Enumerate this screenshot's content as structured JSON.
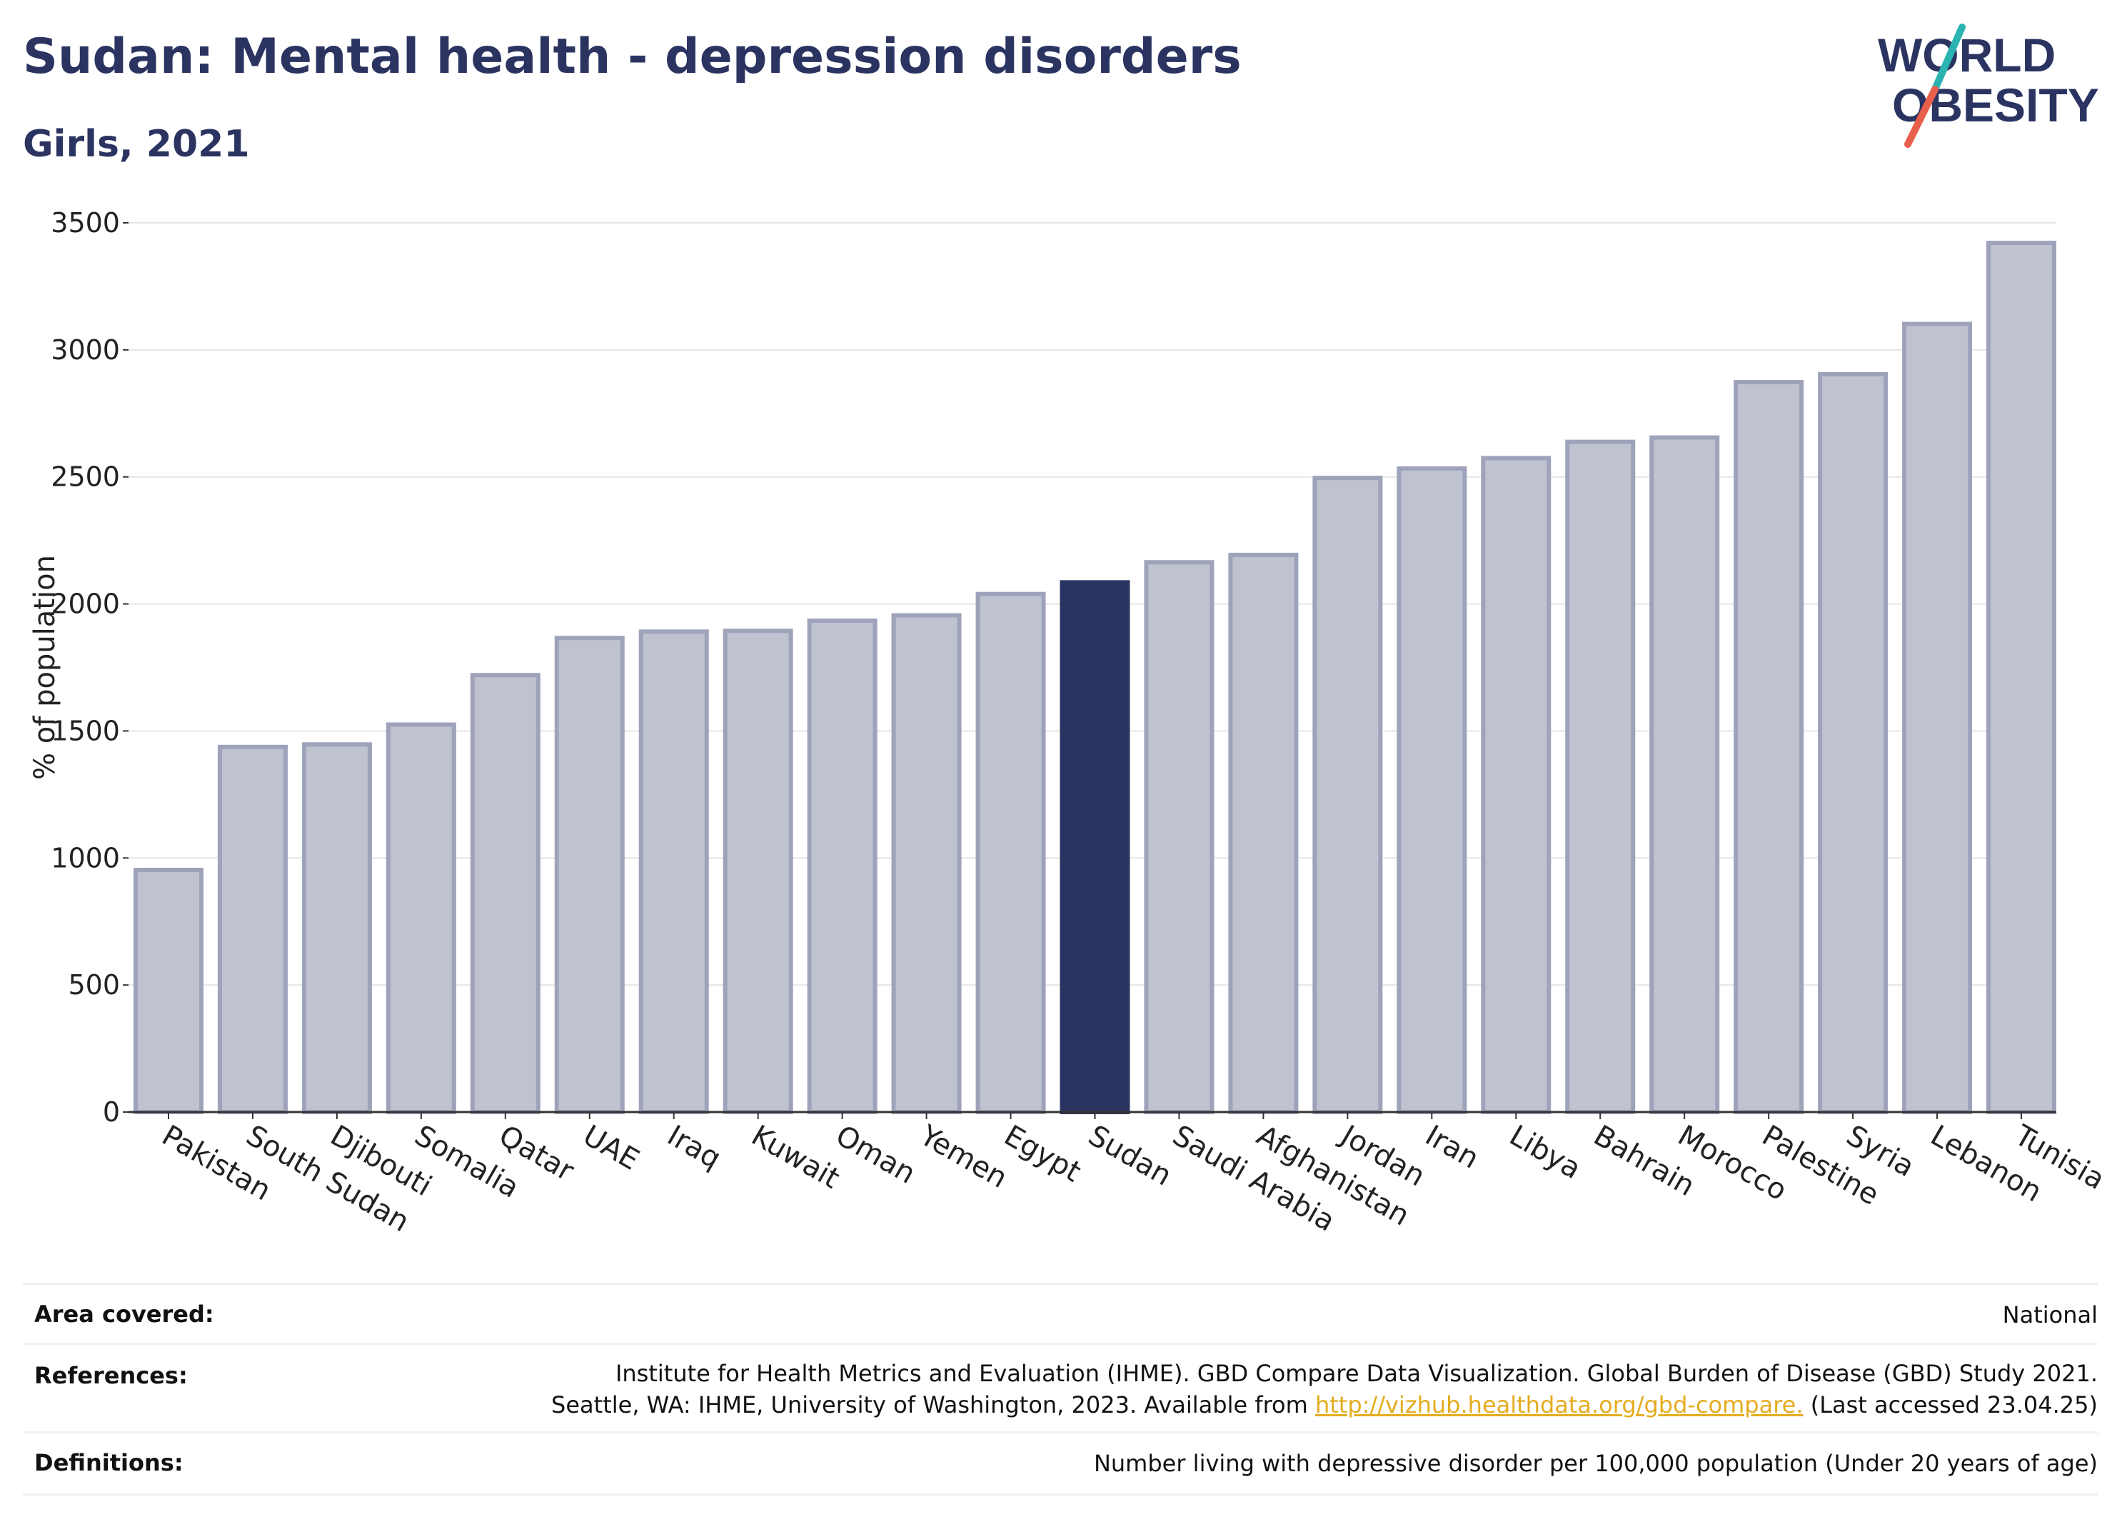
{
  "header": {
    "title": "Sudan: Mental health - depression disorders",
    "subtitle": "Girls, 2021"
  },
  "logo": {
    "line1": "WORLD",
    "line2": "OBESITY",
    "colors": {
      "text": "#2b3461",
      "slash_top": "#2ab3b0",
      "slash_bottom": "#e8604c"
    }
  },
  "chart_data": {
    "type": "bar",
    "title": "",
    "xlabel": "",
    "ylabel": "% of population",
    "ylim": [
      0,
      3500
    ],
    "yticks": [
      0,
      500,
      1000,
      1500,
      2000,
      2500,
      3000,
      3500
    ],
    "grid": true,
    "highlight": "Sudan",
    "categories": [
      "Pakistan",
      "South Sudan",
      "Djibouti",
      "Somalia",
      "Qatar",
      "UAE",
      "Iraq",
      "Kuwait",
      "Oman",
      "Yemen",
      "Egypt",
      "Sudan",
      "Saudi Arabia",
      "Afghanistan",
      "Jordan",
      "Iran",
      "Libya",
      "Bahrain",
      "Morocco",
      "Palestine",
      "Syria",
      "Lebanon",
      "Tunisia"
    ],
    "values": [
      953,
      1437,
      1447,
      1525,
      1720,
      1866,
      1891,
      1894,
      1934,
      1955,
      2039,
      2085,
      2164,
      2193,
      2496,
      2533,
      2574,
      2638,
      2655,
      2873,
      2904,
      3102,
      3421
    ],
    "colors": {
      "bar": "#bfc2cf",
      "bar_edge": "#9ea3bb",
      "highlight": "#2b3461",
      "grid": "#e6e6e6",
      "axis": "#333333",
      "text": "#222222"
    }
  },
  "footer": {
    "area": {
      "label": "Area covered:",
      "value": "National"
    },
    "references": {
      "label": "References:",
      "line1": "Institute for Health Metrics and Evaluation (IHME). GBD Compare Data Visualization. Global Burden of Disease (GBD) Study 2021.",
      "line2_pre": "Seattle, WA: IHME, University of Washington, 2023. Available from ",
      "link": "http://vizhub.healthdata.org/gbd-compare.",
      "line2_post": " (Last accessed 23.04.25)"
    },
    "definitions": {
      "label": "Definitions:",
      "value": "Number living with depressive disorder per 100,000 population (Under 20 years of age)"
    }
  }
}
